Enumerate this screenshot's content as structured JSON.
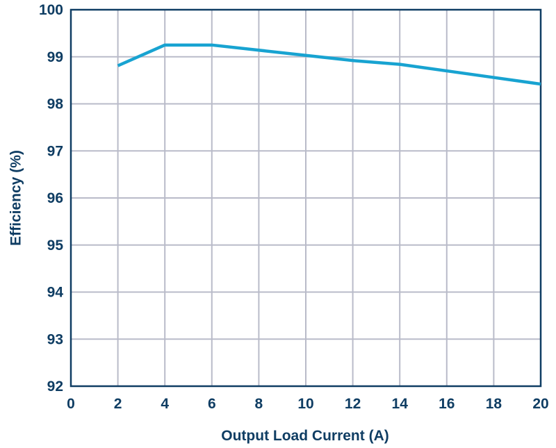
{
  "chart_data": {
    "type": "line",
    "title": "",
    "xlabel": "Output Load Current (A)",
    "ylabel": "Efficiency (%)",
    "xlim": [
      0,
      20
    ],
    "ylim": [
      92,
      100
    ],
    "xticks": [
      "0",
      "2",
      "4",
      "6",
      "8",
      "10",
      "12",
      "14",
      "16",
      "18",
      "20"
    ],
    "yticks": [
      "92",
      "93",
      "94",
      "95",
      "96",
      "97",
      "98",
      "99",
      "100"
    ],
    "grid": true,
    "legend": "none",
    "series": [
      {
        "color": "#18a3d1",
        "x": [
          2,
          4,
          6,
          8,
          10,
          12,
          14,
          16,
          18,
          20
        ],
        "y": [
          98.81,
          99.25,
          99.25,
          99.14,
          99.03,
          98.92,
          98.84,
          98.7,
          98.56,
          98.42
        ]
      }
    ]
  },
  "colors": {
    "axis_text": "#0f3d63",
    "grid": "#b9bbc9",
    "frame": "#0f3d63"
  }
}
